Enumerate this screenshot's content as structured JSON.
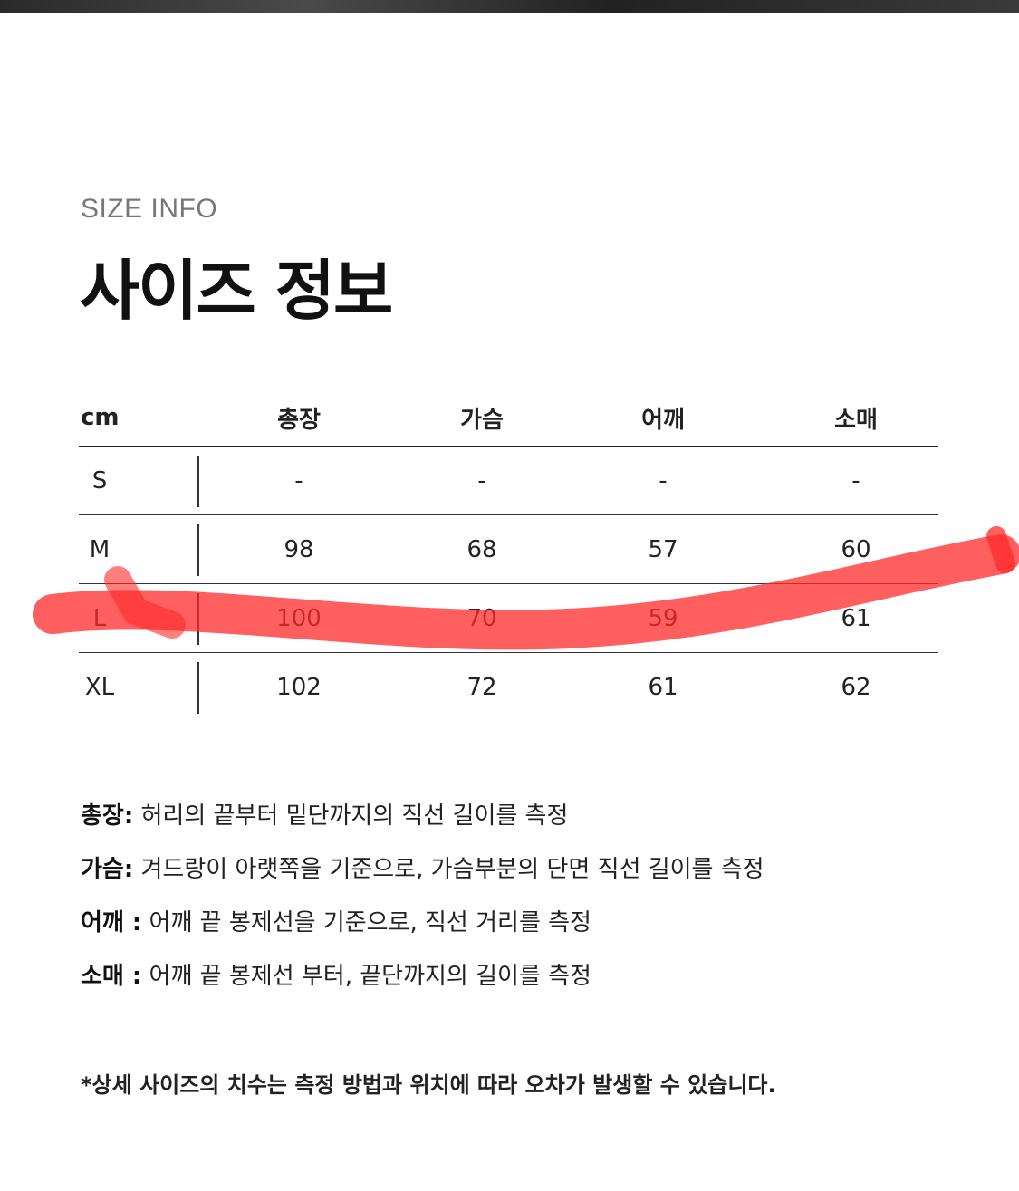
{
  "header": {
    "subtitle": "SIZE INFO",
    "title": "사이즈 정보"
  },
  "size_table": {
    "columns": [
      "cm",
      "총장",
      "가슴",
      "어깨",
      "소매"
    ],
    "rows": [
      [
        "S",
        "-",
        "-",
        "-",
        "-"
      ],
      [
        "M",
        "98",
        "68",
        "57",
        "60"
      ],
      [
        "L",
        "100",
        "70",
        "59",
        "61"
      ],
      [
        "XL",
        "102",
        "72",
        "61",
        "62"
      ]
    ],
    "highlighted_row": "L",
    "highlight_color": "#ff2a2a"
  },
  "notes": [
    {
      "term": "총장:",
      "desc": " 허리의 끝부터 밑단까지의 직선 길이를 측정"
    },
    {
      "term": "가슴:",
      "desc": " 겨드랑이 아랫쪽을 기준으로, 가슴부분의 단면 직선 길이를 측정"
    },
    {
      "term": "어깨 :",
      "desc": " 어깨 끝 봉제선을 기준으로, 직선 거리를 측정"
    },
    {
      "term": "소매 :",
      "desc": " 어깨 끝 봉제선 부터, 끝단까지의 길이를 측정"
    }
  ],
  "disclaimer": "*상세 사이즈의 치수는 측정 방법과 위치에 따라 오차가 발생할 수 있습니다."
}
